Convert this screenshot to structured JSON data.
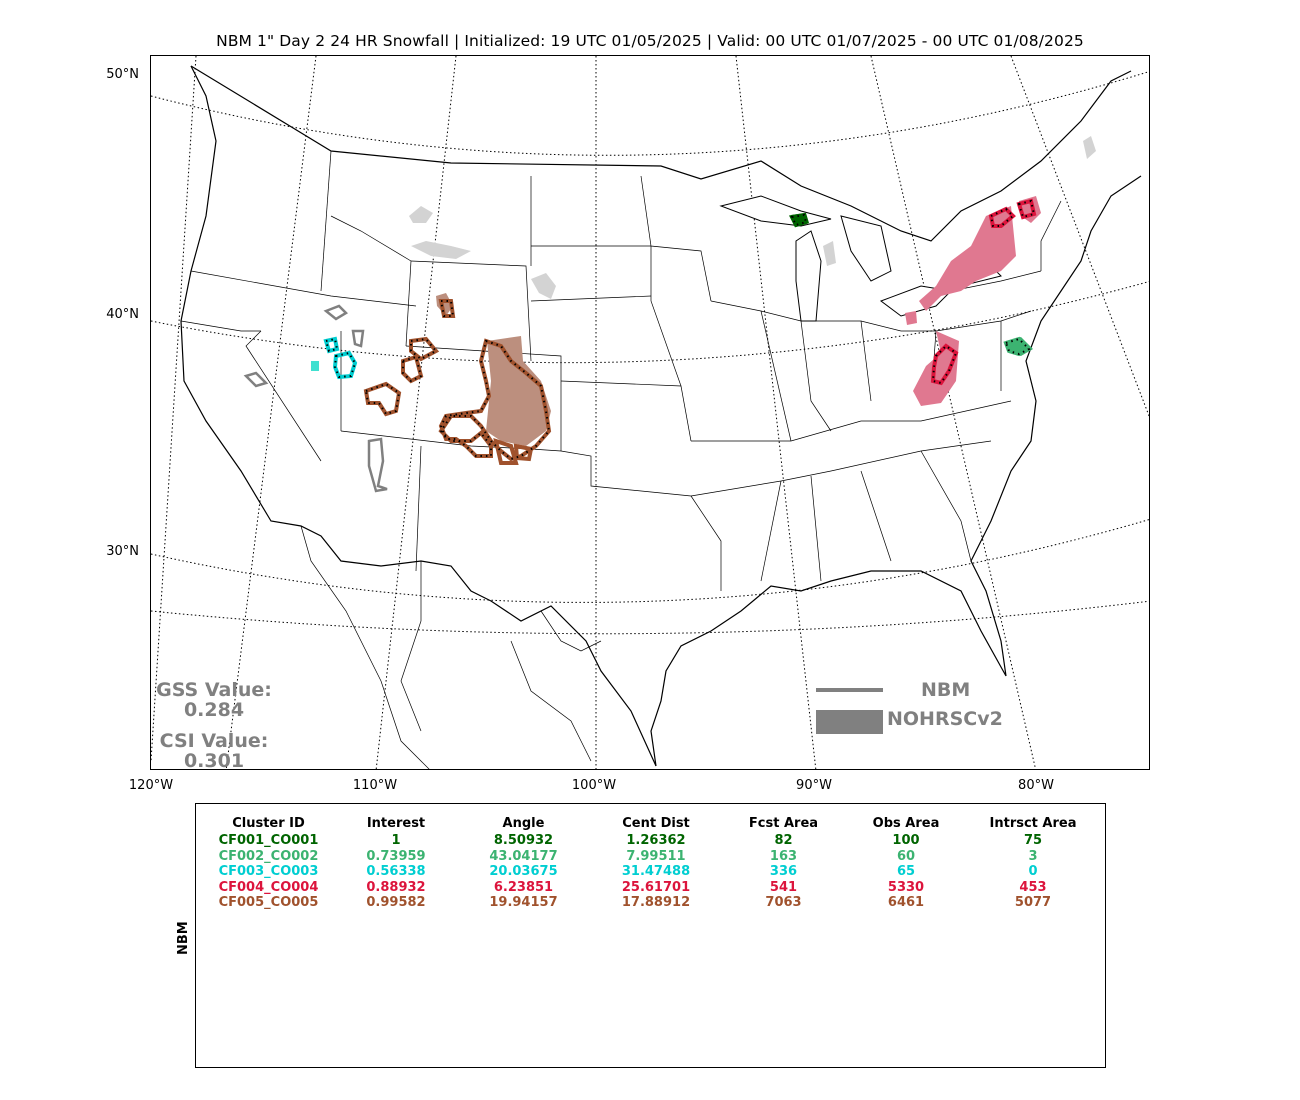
{
  "title": "NBM 1\" Day 2 24 HR Snowfall | Initialized: 19 UTC 01/05/2025 | Valid: 00 UTC 01/07/2025 - 00 UTC 01/08/2025",
  "axes": {
    "lat_labels": [
      "50°N",
      "40°N",
      "30°N"
    ],
    "lon_labels": [
      "120°W",
      "110°W",
      "100°W",
      "90°W",
      "80°W"
    ]
  },
  "stats": {
    "gss_label": "GSS Value:",
    "gss_value": "0.284",
    "csi_label": "CSI Value:",
    "csi_value": "0.301",
    "color": "#808080"
  },
  "legend": {
    "line_label": "NBM",
    "fill_label": "NOHRSCv2",
    "color": "#808080"
  },
  "table": {
    "side_label": "NBM",
    "headers": [
      "Cluster ID",
      "Interest",
      "Angle",
      "Cent Dist",
      "Fcst Area",
      "Obs Area",
      "Intrsct Area"
    ],
    "rows": [
      {
        "cells": [
          "CF001_CO001",
          "1",
          "8.50932",
          "1.26362",
          "82",
          "100",
          "75"
        ],
        "color": "#006400"
      },
      {
        "cells": [
          "CF002_CO002",
          "0.73959",
          "43.04177",
          "7.99511",
          "163",
          "60",
          "3"
        ],
        "color": "#3cb371"
      },
      {
        "cells": [
          "CF003_CO003",
          "0.56338",
          "20.03675",
          "31.47488",
          "336",
          "65",
          "0"
        ],
        "color": "#00ced1"
      },
      {
        "cells": [
          "CF004_CO004",
          "0.88932",
          "6.23851",
          "25.61701",
          "541",
          "5330",
          "453"
        ],
        "color": "#dc143c"
      },
      {
        "cells": [
          "CF005_CO005",
          "0.99582",
          "19.94157",
          "17.88912",
          "7063",
          "6461",
          "5077"
        ],
        "color": "#a0522d"
      }
    ]
  },
  "clusters": [
    {
      "id": "CF001_CO001",
      "region": "Upper Michigan",
      "color": "#006400"
    },
    {
      "id": "CF002_CO002",
      "region": "Maryland/Delaware",
      "color": "#3cb371"
    },
    {
      "id": "CF003_CO003",
      "region": "Utah",
      "color": "#00ced1"
    },
    {
      "id": "CF004_CO004",
      "region": "Appalachians/Northeast",
      "color": "#dc143c"
    },
    {
      "id": "CF005_CO005",
      "region": "Colorado/Wyoming",
      "color": "#a0522d"
    }
  ]
}
